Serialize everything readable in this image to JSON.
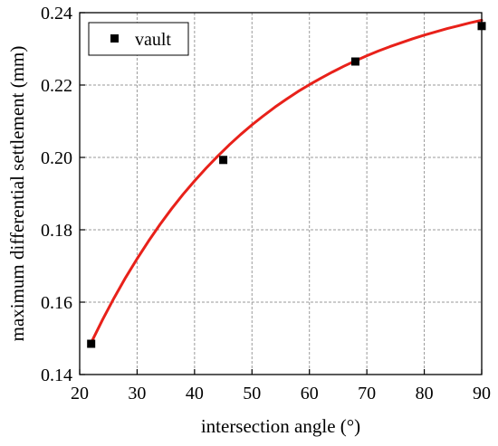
{
  "chart_data": {
    "type": "scatter",
    "title": "",
    "xlabel": "intersection angle (°)",
    "ylabel": "maximum differential settlement (mm)",
    "xlim": [
      20,
      90
    ],
    "ylim": [
      0.14,
      0.24
    ],
    "xticks": [
      20,
      30,
      40,
      50,
      60,
      70,
      80,
      90
    ],
    "yticks": [
      0.14,
      0.16,
      0.18,
      0.2,
      0.22,
      0.24
    ],
    "ytick_labels": [
      "0.14",
      "0.16",
      "0.18",
      "0.20",
      "0.22",
      "0.24"
    ],
    "grid": true,
    "legend_position": "top-left",
    "series": [
      {
        "name": "vault",
        "marker": "square",
        "color": "#000000",
        "x": [
          22,
          45,
          68,
          90
        ],
        "y": [
          0.1485,
          0.1993,
          0.2265,
          0.2363
        ]
      }
    ],
    "fit_curve": {
      "color": "#e8211a",
      "x": [
        22,
        24,
        26,
        28,
        30,
        32,
        34,
        36,
        38,
        40,
        42,
        44,
        46,
        48,
        50,
        52,
        54,
        56,
        58,
        60,
        62,
        64,
        66,
        68,
        70,
        72,
        74,
        76,
        78,
        80,
        82,
        84,
        86,
        88,
        90
      ],
      "y": [
        0.1488,
        0.1552,
        0.1612,
        0.1668,
        0.172,
        0.1769,
        0.1815,
        0.1858,
        0.1898,
        0.1935,
        0.197,
        0.2003,
        0.2034,
        0.2063,
        0.209,
        0.2115,
        0.2139,
        0.2161,
        0.2182,
        0.2201,
        0.2219,
        0.2236,
        0.2252,
        0.2267,
        0.2281,
        0.2294,
        0.2306,
        0.2317,
        0.2328,
        0.2338,
        0.2347,
        0.2356,
        0.2364,
        0.2372,
        0.2379
      ]
    }
  }
}
